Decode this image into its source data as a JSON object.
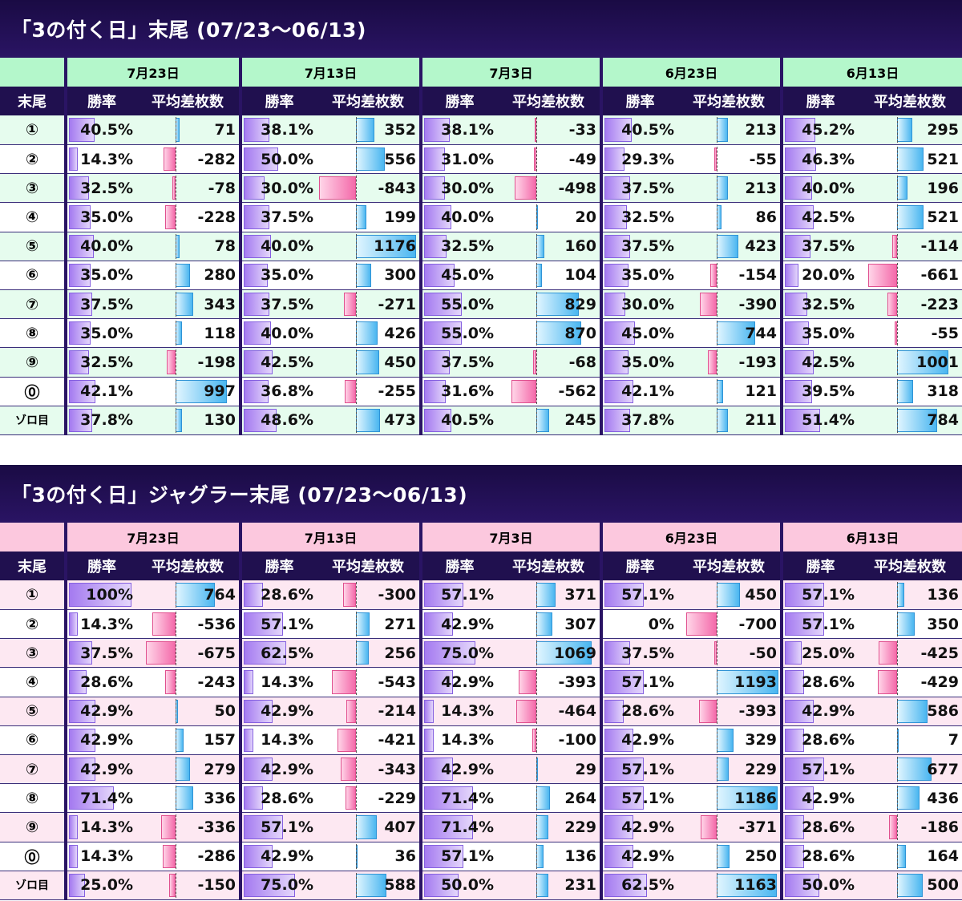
{
  "sections": [
    {
      "title": "「3の付く日」末尾 (07/23〜06/13)",
      "theme": "green",
      "dates": [
        "7月23日",
        "7月13日",
        "7月3日",
        "6月23日",
        "6月13日"
      ],
      "header": {
        "tail": "末尾",
        "win": "勝率",
        "diff": "平均差枚数"
      },
      "rows": [
        {
          "label": "①",
          "cells": [
            [
              "40.5%",
              71
            ],
            [
              "38.1%",
              352
            ],
            [
              "38.1%",
              -33
            ],
            [
              "40.5%",
              213
            ],
            [
              "45.2%",
              295
            ]
          ]
        },
        {
          "label": "②",
          "cells": [
            [
              "14.3%",
              -282
            ],
            [
              "50.0%",
              556
            ],
            [
              "31.0%",
              -49
            ],
            [
              "29.3%",
              -55
            ],
            [
              "46.3%",
              521
            ]
          ]
        },
        {
          "label": "③",
          "cells": [
            [
              "32.5%",
              -78
            ],
            [
              "30.0%",
              -843
            ],
            [
              "30.0%",
              -498
            ],
            [
              "37.5%",
              213
            ],
            [
              "40.0%",
              196
            ]
          ]
        },
        {
          "label": "④",
          "cells": [
            [
              "35.0%",
              -228
            ],
            [
              "37.5%",
              199
            ],
            [
              "40.0%",
              20
            ],
            [
              "32.5%",
              86
            ],
            [
              "42.5%",
              521
            ]
          ]
        },
        {
          "label": "⑤",
          "cells": [
            [
              "40.0%",
              78
            ],
            [
              "40.0%",
              1176
            ],
            [
              "32.5%",
              160
            ],
            [
              "37.5%",
              423
            ],
            [
              "37.5%",
              -114
            ]
          ]
        },
        {
          "label": "⑥",
          "cells": [
            [
              "35.0%",
              280
            ],
            [
              "35.0%",
              300
            ],
            [
              "45.0%",
              104
            ],
            [
              "35.0%",
              -154
            ],
            [
              "20.0%",
              -661
            ]
          ]
        },
        {
          "label": "⑦",
          "cells": [
            [
              "37.5%",
              343
            ],
            [
              "37.5%",
              -271
            ],
            [
              "55.0%",
              829
            ],
            [
              "30.0%",
              -390
            ],
            [
              "32.5%",
              -223
            ]
          ]
        },
        {
          "label": "⑧",
          "cells": [
            [
              "35.0%",
              118
            ],
            [
              "40.0%",
              426
            ],
            [
              "55.0%",
              870
            ],
            [
              "45.0%",
              744
            ],
            [
              "35.0%",
              -55
            ]
          ]
        },
        {
          "label": "⑨",
          "cells": [
            [
              "32.5%",
              -198
            ],
            [
              "42.5%",
              450
            ],
            [
              "37.5%",
              -68
            ],
            [
              "35.0%",
              -193
            ],
            [
              "42.5%",
              1001
            ]
          ]
        },
        {
          "label": "⓪",
          "cells": [
            [
              "42.1%",
              997
            ],
            [
              "36.8%",
              -255
            ],
            [
              "31.6%",
              -562
            ],
            [
              "42.1%",
              121
            ],
            [
              "39.5%",
              318
            ]
          ]
        },
        {
          "label": "ゾロ目",
          "cells": [
            [
              "37.8%",
              130
            ],
            [
              "48.6%",
              473
            ],
            [
              "40.5%",
              245
            ],
            [
              "37.8%",
              211
            ],
            [
              "51.4%",
              784
            ]
          ]
        }
      ]
    },
    {
      "title": "「3の付く日」ジャグラー末尾 (07/23〜06/13)",
      "theme": "pink",
      "dates": [
        "7月23日",
        "7月13日",
        "7月3日",
        "6月23日",
        "6月13日"
      ],
      "header": {
        "tail": "末尾",
        "win": "勝率",
        "diff": "平均差枚数"
      },
      "rows": [
        {
          "label": "①",
          "cells": [
            [
              "100%",
              764
            ],
            [
              "28.6%",
              -300
            ],
            [
              "57.1%",
              371
            ],
            [
              "57.1%",
              450
            ],
            [
              "57.1%",
              136
            ]
          ]
        },
        {
          "label": "②",
          "cells": [
            [
              "14.3%",
              -536
            ],
            [
              "57.1%",
              271
            ],
            [
              "42.9%",
              307
            ],
            [
              "0%",
              -700
            ],
            [
              "57.1%",
              350
            ]
          ]
        },
        {
          "label": "③",
          "cells": [
            [
              "37.5%",
              -675
            ],
            [
              "62.5%",
              256
            ],
            [
              "75.0%",
              1069
            ],
            [
              "37.5%",
              -50
            ],
            [
              "25.0%",
              -425
            ]
          ]
        },
        {
          "label": "④",
          "cells": [
            [
              "28.6%",
              -243
            ],
            [
              "14.3%",
              -543
            ],
            [
              "42.9%",
              -393
            ],
            [
              "57.1%",
              1193
            ],
            [
              "28.6%",
              -429
            ]
          ]
        },
        {
          "label": "⑤",
          "cells": [
            [
              "42.9%",
              50
            ],
            [
              "42.9%",
              -214
            ],
            [
              "14.3%",
              -464
            ],
            [
              "28.6%",
              -393
            ],
            [
              "42.9%",
              586
            ]
          ]
        },
        {
          "label": "⑥",
          "cells": [
            [
              "42.9%",
              157
            ],
            [
              "14.3%",
              -421
            ],
            [
              "14.3%",
              -100
            ],
            [
              "42.9%",
              329
            ],
            [
              "28.6%",
              7
            ]
          ]
        },
        {
          "label": "⑦",
          "cells": [
            [
              "42.9%",
              279
            ],
            [
              "42.9%",
              -343
            ],
            [
              "42.9%",
              29
            ],
            [
              "57.1%",
              229
            ],
            [
              "57.1%",
              677
            ]
          ]
        },
        {
          "label": "⑧",
          "cells": [
            [
              "71.4%",
              336
            ],
            [
              "28.6%",
              -229
            ],
            [
              "71.4%",
              264
            ],
            [
              "57.1%",
              1186
            ],
            [
              "42.9%",
              436
            ]
          ]
        },
        {
          "label": "⑨",
          "cells": [
            [
              "14.3%",
              -336
            ],
            [
              "57.1%",
              407
            ],
            [
              "71.4%",
              229
            ],
            [
              "42.9%",
              -371
            ],
            [
              "28.6%",
              -186
            ]
          ]
        },
        {
          "label": "⓪",
          "cells": [
            [
              "14.3%",
              -286
            ],
            [
              "42.9%",
              36
            ],
            [
              "57.1%",
              136
            ],
            [
              "42.9%",
              250
            ],
            [
              "28.6%",
              164
            ]
          ]
        },
        {
          "label": "ゾロ目",
          "cells": [
            [
              "25.0%",
              -150
            ],
            [
              "75.0%",
              588
            ],
            [
              "50.0%",
              231
            ],
            [
              "62.5%",
              1163
            ],
            [
              "50.0%",
              500
            ]
          ]
        }
      ]
    }
  ],
  "colors": {
    "title_bg": "#1a0b44",
    "header_bg": "#20104f",
    "green_date": "#b4f7cb",
    "pink_date": "#fcc8de",
    "win_bar": "#a47af0",
    "pos_bar": "#4ab6f0",
    "neg_bar": "#f46aaa"
  }
}
